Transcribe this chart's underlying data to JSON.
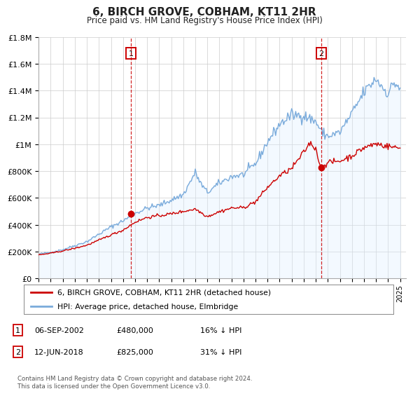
{
  "title": "6, BIRCH GROVE, COBHAM, KT11 2HR",
  "subtitle": "Price paid vs. HM Land Registry's House Price Index (HPI)",
  "ylim": [
    0,
    1800000
  ],
  "xlim_start": 1995.0,
  "xlim_end": 2025.5,
  "yticks": [
    0,
    200000,
    400000,
    600000,
    800000,
    1000000,
    1200000,
    1400000,
    1600000,
    1800000
  ],
  "ytick_labels": [
    "£0",
    "£200K",
    "£400K",
    "£600K",
    "£800K",
    "£1M",
    "£1.2M",
    "£1.4M",
    "£1.6M",
    "£1.8M"
  ],
  "sale1_date": 2002.67,
  "sale1_price": 480000,
  "sale1_label": "1",
  "sale2_date": 2018.44,
  "sale2_price": 825000,
  "sale2_label": "2",
  "red_line_color": "#cc0000",
  "blue_line_color": "#7aabdb",
  "blue_fill_color": "#ddeeff",
  "grid_color": "#cccccc",
  "background_color": "#ffffff",
  "legend_label_red": "6, BIRCH GROVE, COBHAM, KT11 2HR (detached house)",
  "legend_label_blue": "HPI: Average price, detached house, Elmbridge",
  "note1_label": "1",
  "note1_date": "06-SEP-2002",
  "note1_price": "£480,000",
  "note1_pct": "16% ↓ HPI",
  "note2_label": "2",
  "note2_date": "12-JUN-2018",
  "note2_price": "£825,000",
  "note2_pct": "31% ↓ HPI",
  "footer": "Contains HM Land Registry data © Crown copyright and database right 2024.\nThis data is licensed under the Open Government Licence v3.0."
}
